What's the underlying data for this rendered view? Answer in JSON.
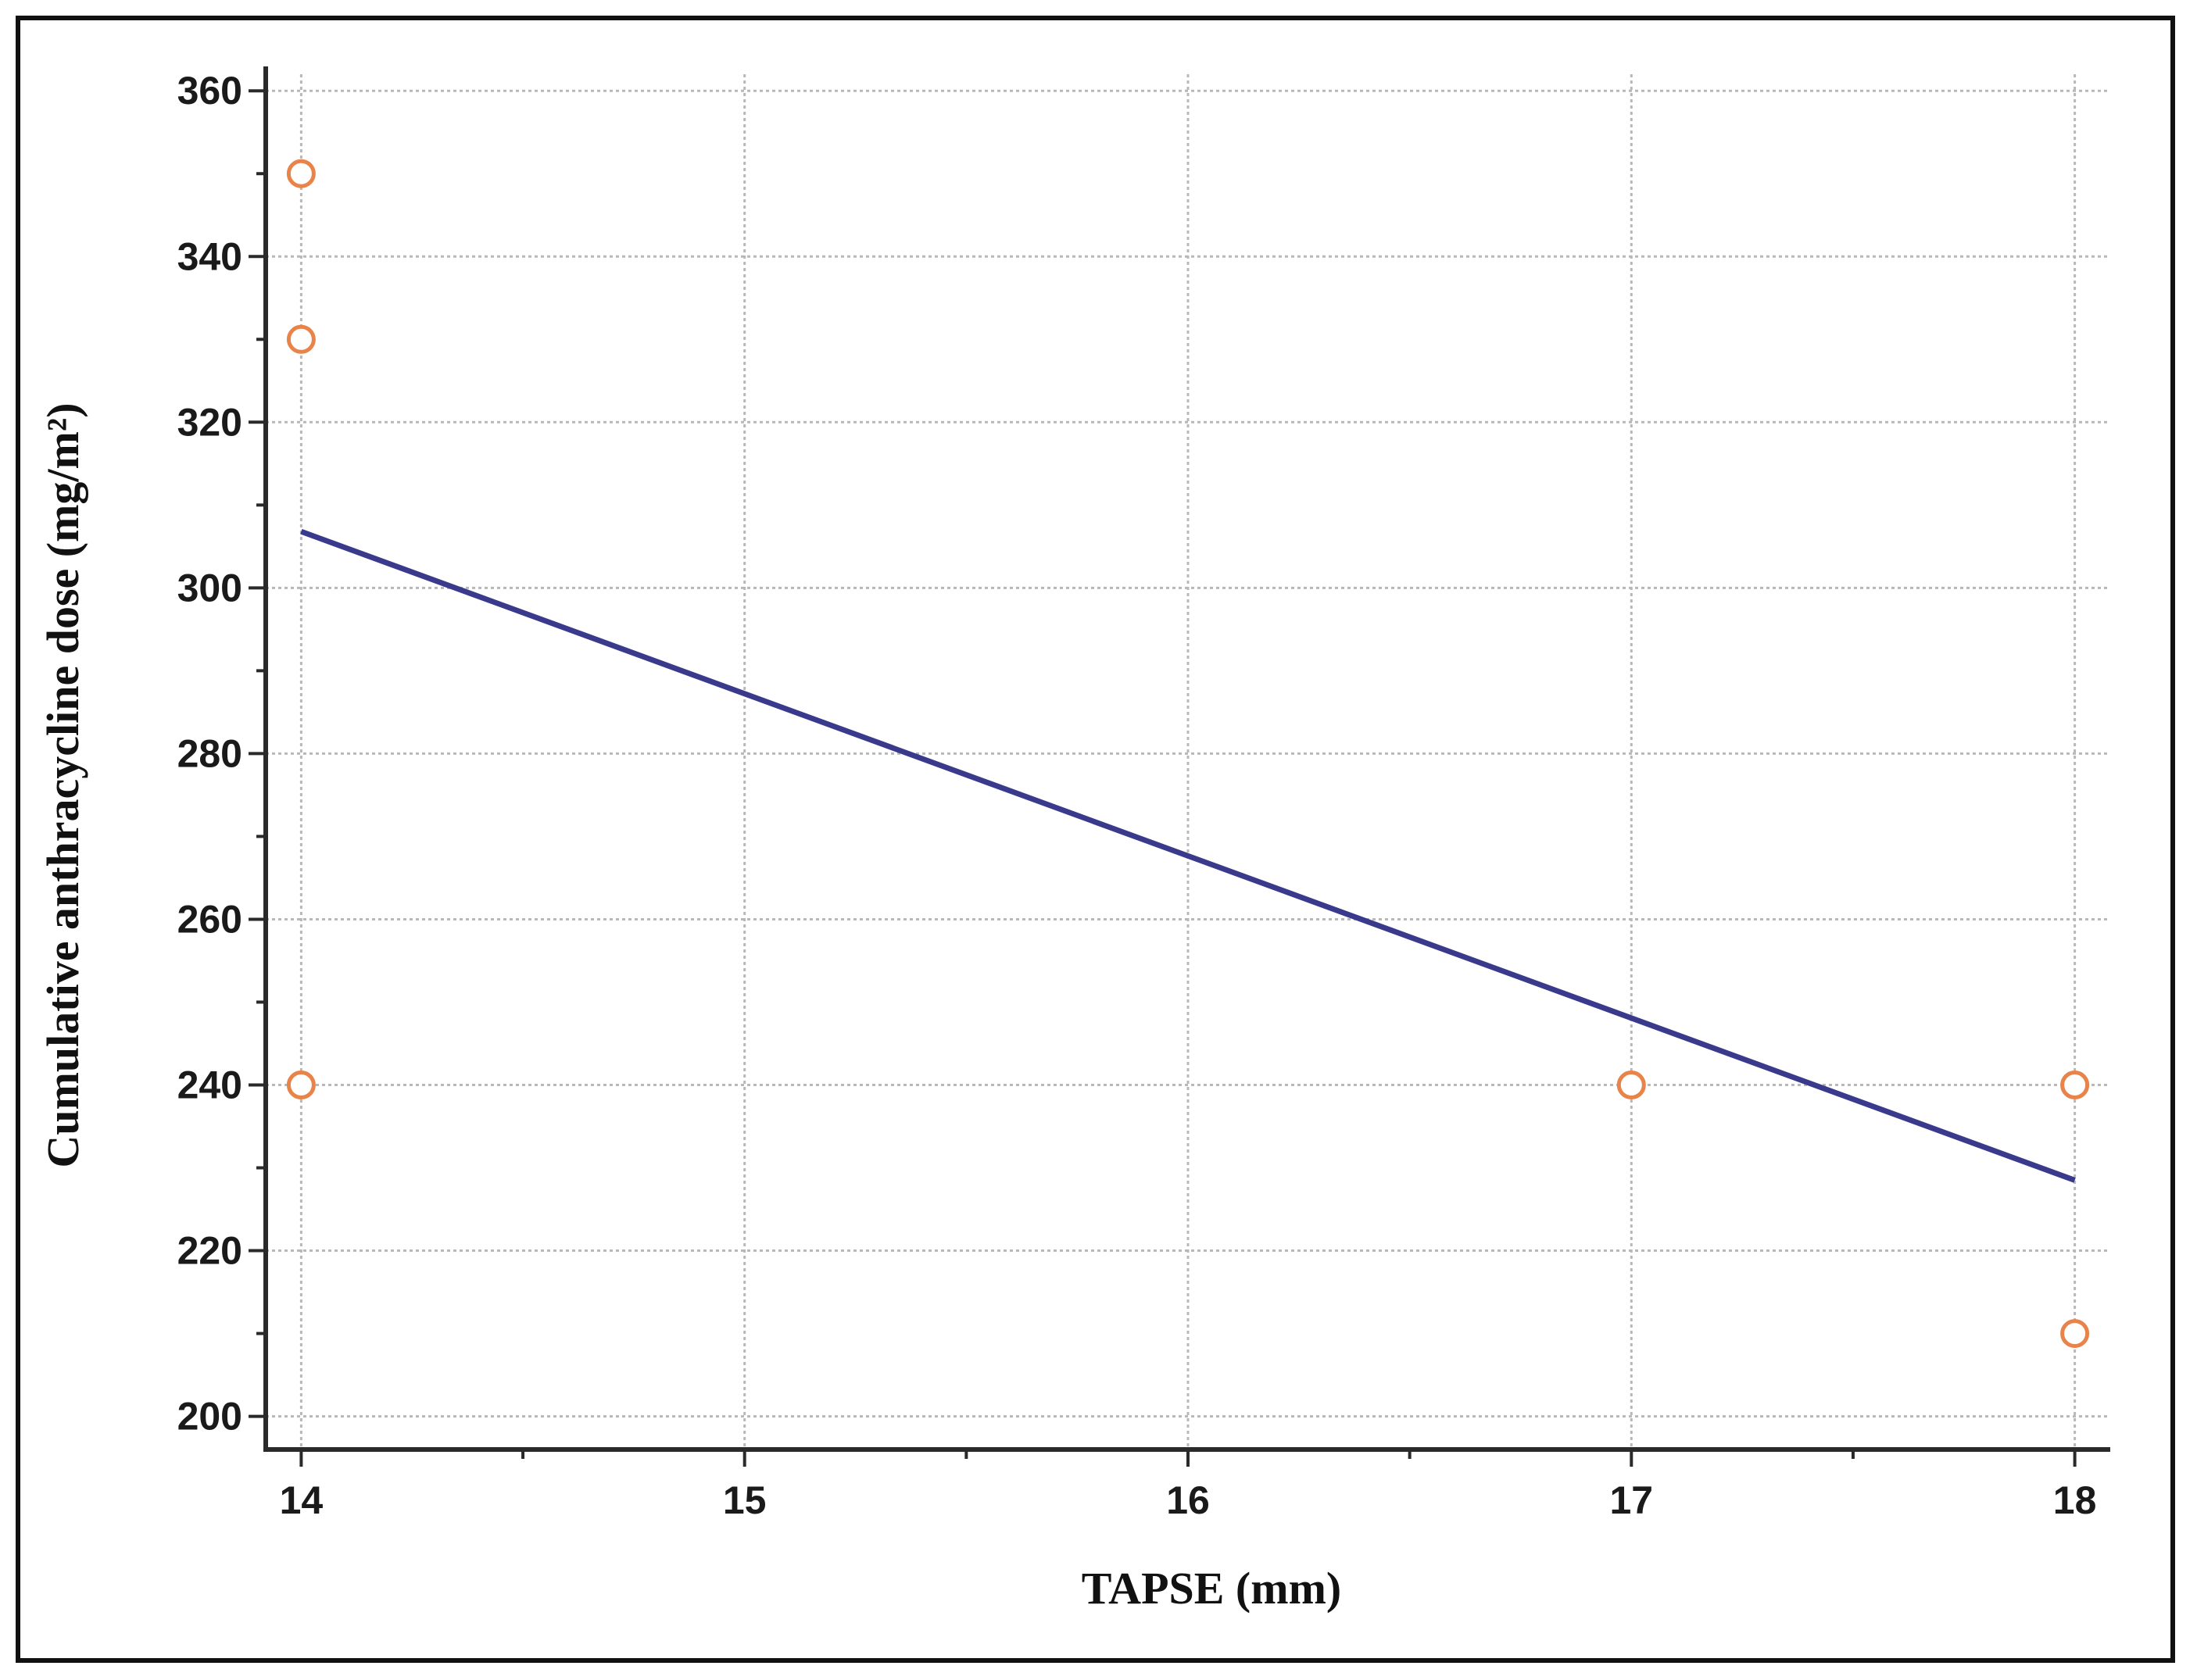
{
  "chart_data": {
    "type": "scatter",
    "xlabel": "TAPSE (mm)",
    "ylabel": "Cumulative anthracycline dose (mg/m²)",
    "xlim": [
      13.92,
      18.08
    ],
    "ylim": [
      196,
      362
    ],
    "x_ticks": [
      14,
      15,
      16,
      17,
      18
    ],
    "y_ticks": [
      200,
      220,
      240,
      260,
      280,
      300,
      320,
      340,
      360
    ],
    "grid": true,
    "points": [
      {
        "x": 14,
        "y": 350
      },
      {
        "x": 14,
        "y": 330
      },
      {
        "x": 14,
        "y": 240
      },
      {
        "x": 17,
        "y": 240
      },
      {
        "x": 18,
        "y": 240
      },
      {
        "x": 18,
        "y": 210
      }
    ],
    "regression_line": {
      "x": [
        14,
        18
      ],
      "y": [
        306.8,
        228.5
      ]
    },
    "colors": {
      "points": "#e8834a",
      "line": "#3a3a8c",
      "grid": "#b8b8b8"
    }
  }
}
